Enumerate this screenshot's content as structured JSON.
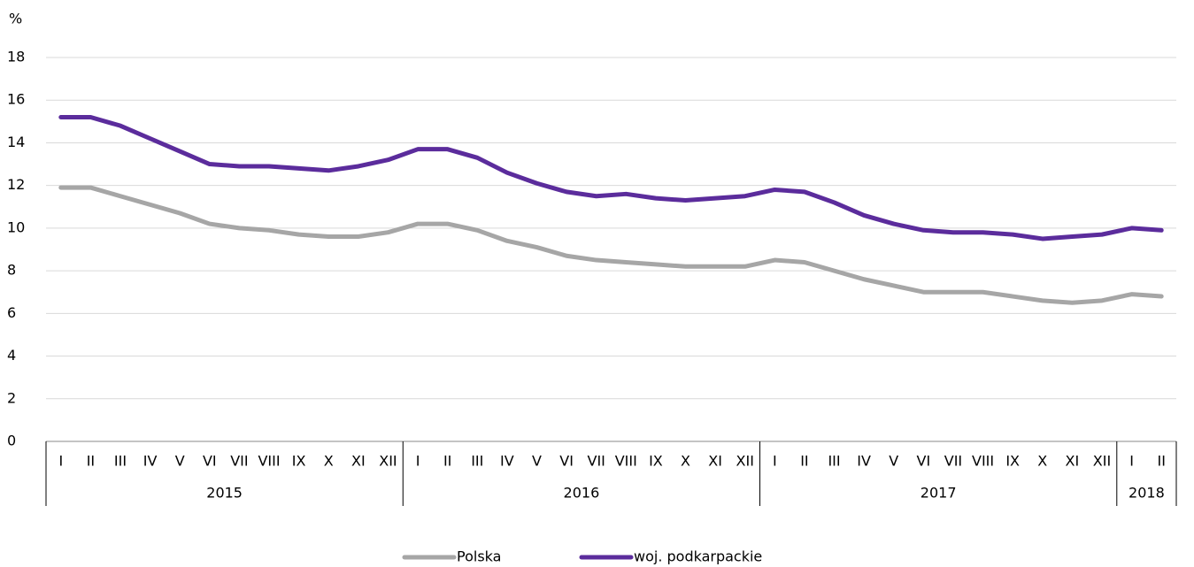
{
  "chart_data": {
    "type": "line",
    "y_unit": "%",
    "year_groups": [
      {
        "label": "2015",
        "categories": [
          "I",
          "II",
          "III",
          "IV",
          "V",
          "VI",
          "VII",
          "VIII",
          "IX",
          "X",
          "XI",
          "XII"
        ]
      },
      {
        "label": "2016",
        "categories": [
          "I",
          "II",
          "III",
          "IV",
          "V",
          "VI",
          "VII",
          "VIII",
          "IX",
          "X",
          "XI",
          "XII"
        ]
      },
      {
        "label": "2017",
        "categories": [
          "I",
          "II",
          "III",
          "IV",
          "V",
          "VI",
          "VII",
          "VIII",
          "IX",
          "X",
          "XI",
          "XII"
        ]
      },
      {
        "label": "2018",
        "categories": [
          "I",
          "II"
        ]
      }
    ],
    "series": [
      {
        "name": "Polska",
        "color": "#a6a6a6",
        "values": [
          11.9,
          11.9,
          11.5,
          11.1,
          10.7,
          10.2,
          10.0,
          9.9,
          9.7,
          9.6,
          9.6,
          9.8,
          10.2,
          10.2,
          9.9,
          9.4,
          9.1,
          8.7,
          8.5,
          8.4,
          8.3,
          8.2,
          8.2,
          8.2,
          8.5,
          8.4,
          8.0,
          7.6,
          7.3,
          7.0,
          7.0,
          7.0,
          6.8,
          6.6,
          6.5,
          6.6,
          6.9,
          6.8
        ]
      },
      {
        "name": "woj. podkarpackie",
        "color": "#5b2c9c",
        "values": [
          15.2,
          15.2,
          14.8,
          14.2,
          13.6,
          13.0,
          12.9,
          12.9,
          12.8,
          12.7,
          12.9,
          13.2,
          13.7,
          13.7,
          13.3,
          12.6,
          12.1,
          11.7,
          11.5,
          11.6,
          11.4,
          11.3,
          11.4,
          11.5,
          11.8,
          11.7,
          11.2,
          10.6,
          10.2,
          9.9,
          9.8,
          9.8,
          9.7,
          9.5,
          9.6,
          9.7,
          10.0,
          9.9
        ]
      }
    ],
    "ylim": [
      0,
      18
    ],
    "yticks": [
      0,
      2,
      4,
      6,
      8,
      10,
      12,
      14,
      16,
      18
    ],
    "grid": true,
    "legend": "bottom"
  }
}
